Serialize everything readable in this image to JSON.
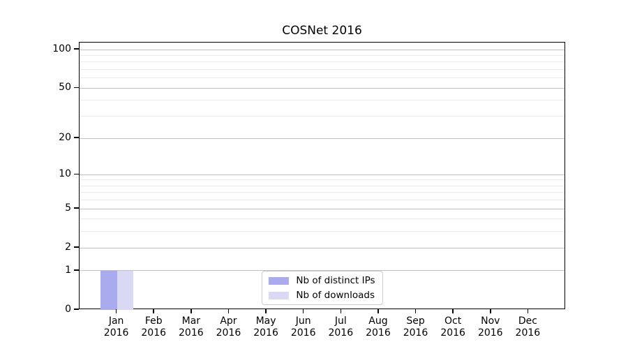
{
  "title": "COSNet 2016",
  "chart_data": {
    "type": "bar",
    "title": "COSNet 2016",
    "categories": [
      "Jan 2016",
      "Feb 2016",
      "Mar 2016",
      "Apr 2016",
      "May 2016",
      "Jun 2016",
      "Jul 2016",
      "Aug 2016",
      "Sep 2016",
      "Oct 2016",
      "Nov 2016",
      "Dec 2016"
    ],
    "series": [
      {
        "name": "Nb of distinct IPs",
        "color": "#aaaaee",
        "values": [
          1,
          0,
          0,
          0,
          0,
          0,
          0,
          0,
          0,
          0,
          0,
          0
        ]
      },
      {
        "name": "Nb of downloads",
        "color": "#d9d9f6",
        "values": [
          1,
          0,
          0,
          0,
          0,
          0,
          0,
          0,
          0,
          0,
          0,
          0
        ]
      }
    ],
    "xlabel": "",
    "ylabel": "",
    "yticks": [
      0,
      1,
      2,
      5,
      10,
      20,
      50,
      100
    ],
    "minor_gridline_values": [
      3,
      4,
      6,
      7,
      8,
      9,
      30,
      40,
      60,
      70,
      80,
      90
    ],
    "yscale": "log1p",
    "ylim": [
      0,
      113.5
    ],
    "grid": "horizontal major+minor",
    "legend_position": "lower center inside"
  },
  "colors": {
    "background": "#ffffff",
    "axis": "#000000",
    "major_grid": "#c0c0c0",
    "minor_grid": "#ebebeb",
    "legend_border": "#cccccc"
  }
}
